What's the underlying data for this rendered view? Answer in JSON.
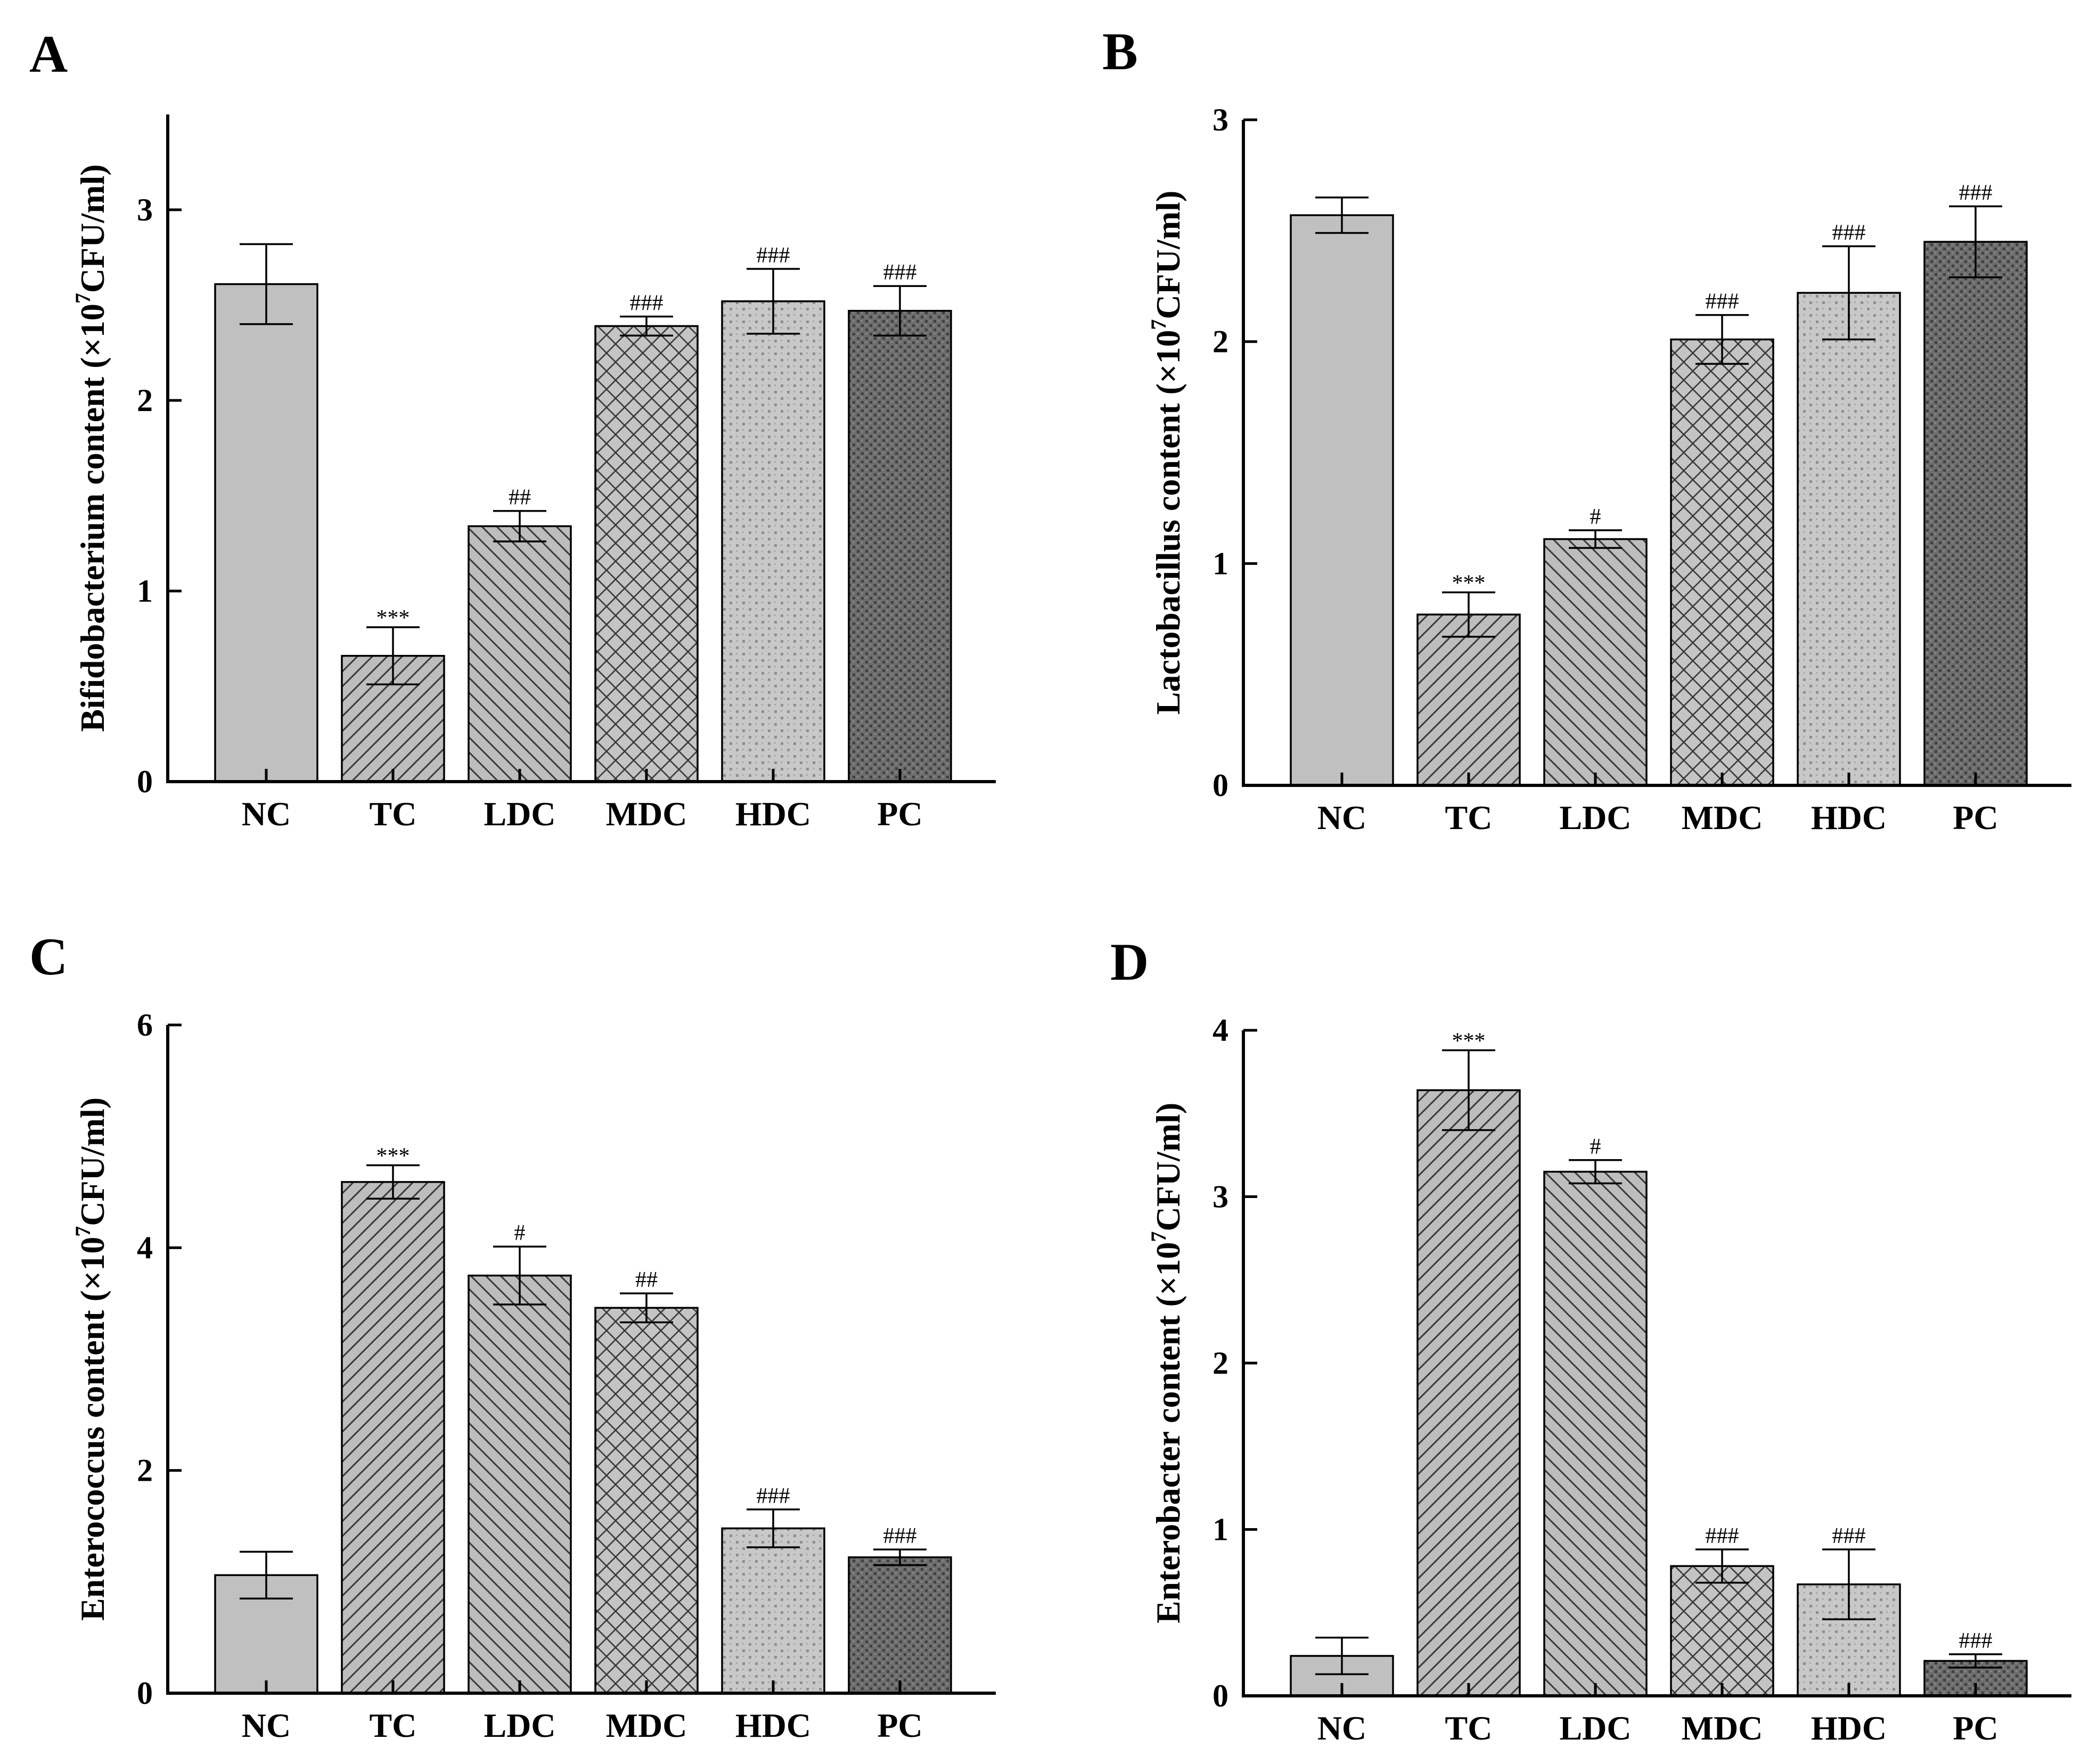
{
  "figure": {
    "groups": [
      "NC",
      "TC",
      "LDC",
      "MDC",
      "HDC",
      "PC"
    ]
  },
  "chart_data": [
    {
      "panel": "A",
      "type": "bar",
      "ylabel_prefix": "Bifidobacterium content (×10",
      "ylabel_exponent": "7",
      "ylabel_suffix": "CFU/ml)",
      "categories": [
        "NC",
        "TC",
        "LDC",
        "MDC",
        "HDC",
        "PC"
      ],
      "values": [
        2.61,
        0.66,
        1.34,
        2.39,
        2.52,
        2.47
      ],
      "errors": [
        0.21,
        0.15,
        0.08,
        0.05,
        0.17,
        0.13
      ],
      "significance": [
        "",
        "***",
        "##",
        "###",
        "###",
        "###"
      ],
      "ylim": [
        0,
        3.5
      ],
      "yticks": [
        0,
        1,
        2,
        3
      ],
      "yticks_labels": [
        "0",
        "1",
        "2",
        "3"
      ]
    },
    {
      "panel": "B",
      "type": "bar",
      "ylabel_prefix": "Lactobacillus content (×10",
      "ylabel_exponent": "7",
      "ylabel_suffix": "CFU/ml)",
      "categories": [
        "NC",
        "TC",
        "LDC",
        "MDC",
        "HDC",
        "PC"
      ],
      "values": [
        2.57,
        0.77,
        1.11,
        2.01,
        2.22,
        2.45
      ],
      "errors": [
        0.08,
        0.1,
        0.04,
        0.11,
        0.21,
        0.16
      ],
      "significance": [
        "",
        "***",
        "#",
        "###",
        "###",
        "###"
      ],
      "ylim": [
        0,
        3
      ],
      "yticks": [
        0,
        1,
        2,
        3
      ],
      "yticks_labels": [
        "0",
        "1",
        "2",
        "3"
      ]
    },
    {
      "panel": "C",
      "type": "bar",
      "ylabel_prefix": "Enterococcus content (×10",
      "ylabel_exponent": "7",
      "ylabel_suffix": "CFU/ml)",
      "categories": [
        "NC",
        "TC",
        "LDC",
        "MDC",
        "HDC",
        "PC"
      ],
      "values": [
        1.06,
        4.59,
        3.75,
        3.46,
        1.48,
        1.22
      ],
      "errors": [
        0.21,
        0.15,
        0.26,
        0.13,
        0.17,
        0.07
      ],
      "significance": [
        "",
        "***",
        "#",
        "##",
        "###",
        "###"
      ],
      "ylim": [
        0,
        6
      ],
      "yticks": [
        0,
        2,
        4,
        6
      ],
      "yticks_labels": [
        "0",
        "2",
        "4",
        "6"
      ]
    },
    {
      "panel": "D",
      "type": "bar",
      "ylabel_prefix": "Enterobacter content (×10",
      "ylabel_exponent": "7",
      "ylabel_suffix": "CFU/ml)",
      "categories": [
        "NC",
        "TC",
        "LDC",
        "MDC",
        "HDC",
        "PC"
      ],
      "values": [
        0.24,
        3.64,
        3.15,
        0.78,
        0.67,
        0.21
      ],
      "errors": [
        0.11,
        0.24,
        0.07,
        0.1,
        0.21,
        0.04
      ],
      "significance": [
        "",
        "***",
        "#",
        "###",
        "###",
        "###"
      ],
      "ylim": [
        0,
        4
      ],
      "yticks": [
        0,
        1,
        2,
        3,
        4
      ],
      "yticks_labels": [
        "0",
        "1",
        "2",
        "3",
        "4"
      ]
    }
  ],
  "colors": {
    "nc": "#c0c0c0",
    "hatch_light_bg": "#bdbdbd",
    "hatch_line": "#3a3a3a",
    "hdc_bg": "#c8c8c8",
    "hdc_dot": "#8e8e8e",
    "pc_bg": "#6e6e6e",
    "pc_dot": "#404040"
  }
}
